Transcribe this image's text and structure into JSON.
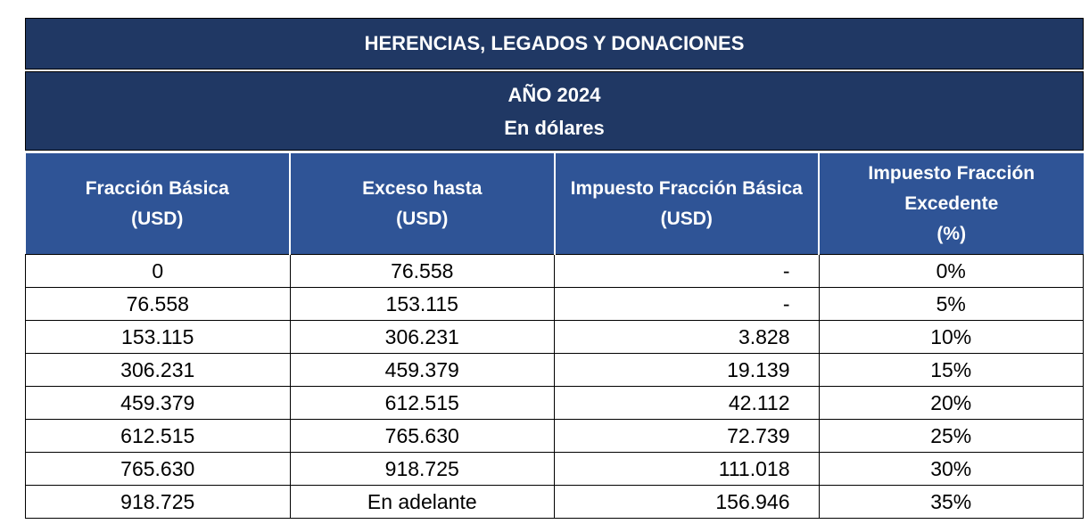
{
  "header": {
    "title": "HERENCIAS, LEGADOS Y DONACIONES",
    "subtitle": [
      "AÑO 2024",
      "En dólares"
    ]
  },
  "table": {
    "columns": [
      [
        "Fracción Básica",
        "(USD)"
      ],
      [
        "Exceso hasta",
        "(USD)"
      ],
      [
        "Impuesto Fracción Básica",
        "(USD)"
      ],
      [
        "Impuesto Fracción",
        "Excedente",
        "(%)"
      ]
    ],
    "rows": [
      [
        "0",
        "76.558",
        "-",
        "0%"
      ],
      [
        "76.558",
        "153.115",
        "-",
        "5%"
      ],
      [
        "153.115",
        "306.231",
        "3.828",
        "10%"
      ],
      [
        "306.231",
        "459.379",
        "19.139",
        "15%"
      ],
      [
        "459.379",
        "612.515",
        "42.112",
        "20%"
      ],
      [
        "612.515",
        "765.630",
        "72.739",
        "25%"
      ],
      [
        "765.630",
        "918.725",
        "111.018",
        "30%"
      ],
      [
        "918.725",
        "En adelante",
        "156.946",
        "35%"
      ]
    ]
  }
}
